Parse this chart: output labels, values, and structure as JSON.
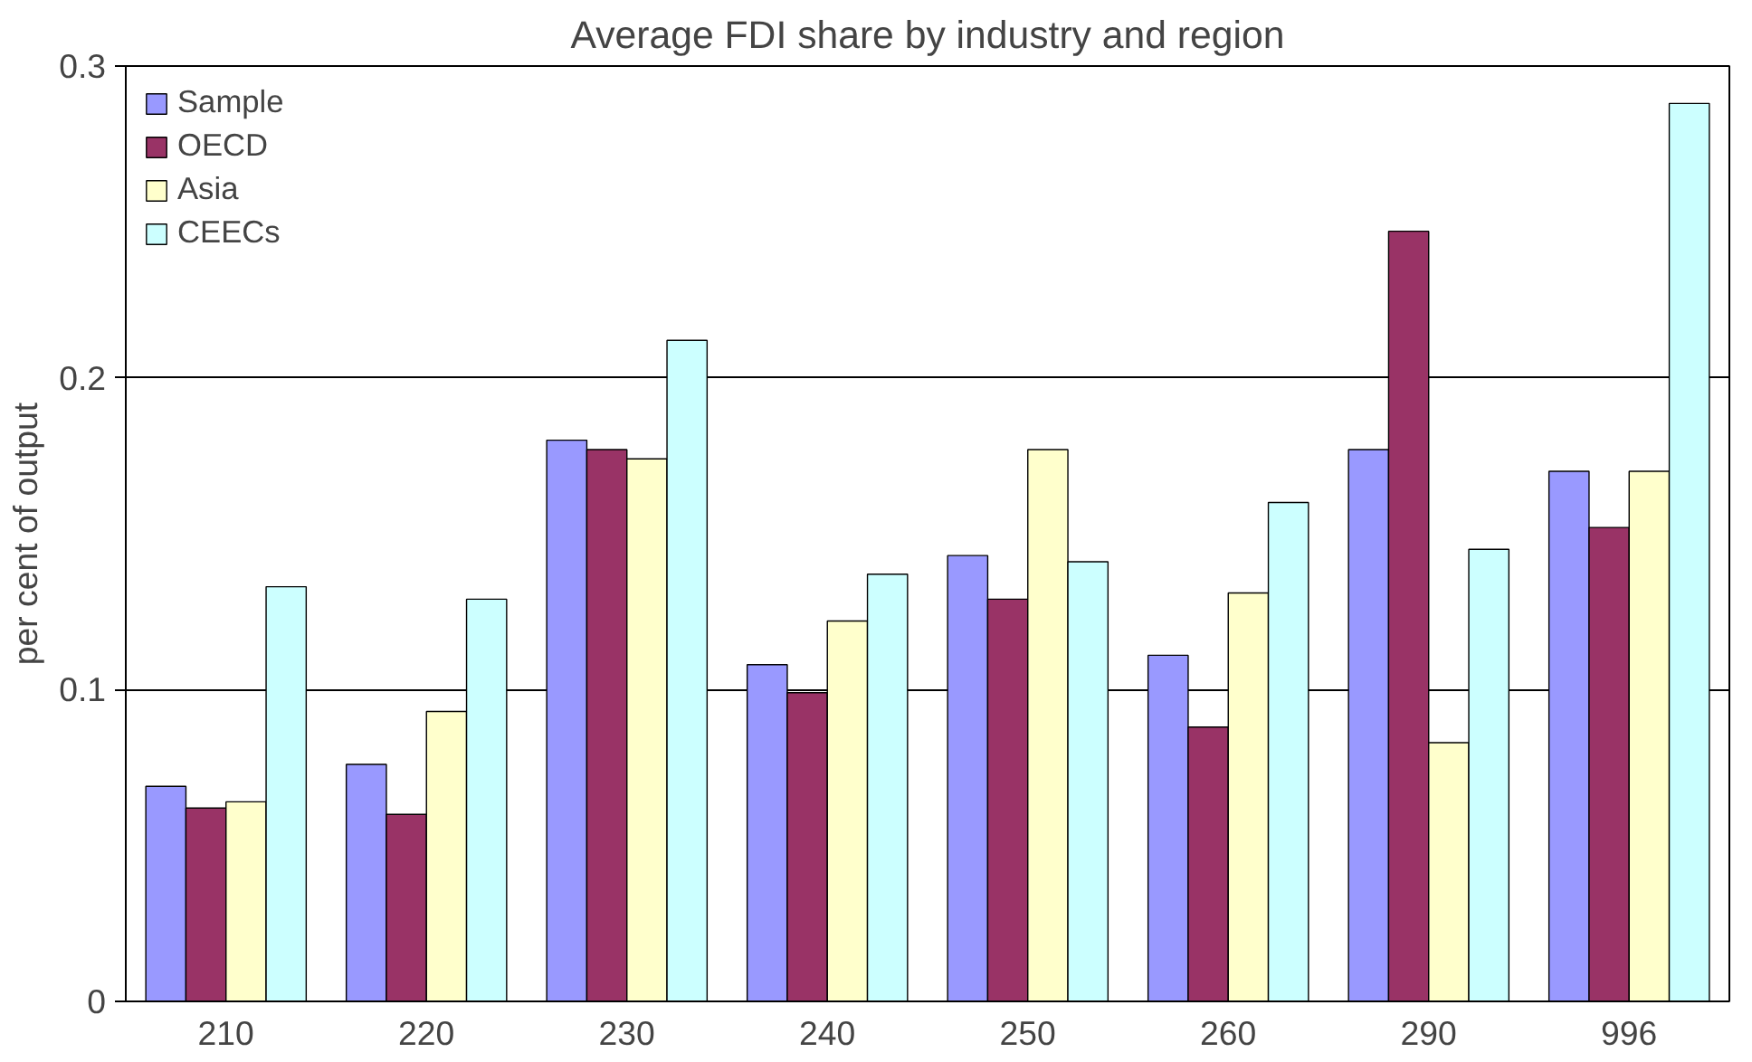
{
  "chart_data": {
    "type": "bar",
    "title": "Average FDI share by industry and region",
    "ylabel": "per cent of output",
    "categories": [
      "210",
      "220",
      "230",
      "240",
      "250",
      "260",
      "290",
      "996"
    ],
    "series": [
      {
        "name": "Sample",
        "color": "#9999ff",
        "values": [
          0.069,
          0.076,
          0.18,
          0.108,
          0.143,
          0.111,
          0.177,
          0.17
        ]
      },
      {
        "name": "OECD",
        "color": "#993366",
        "values": [
          0.062,
          0.06,
          0.177,
          0.099,
          0.129,
          0.088,
          0.247,
          0.152
        ]
      },
      {
        "name": "Asia",
        "color": "#ffffcc",
        "values": [
          0.064,
          0.093,
          0.174,
          0.122,
          0.177,
          0.131,
          0.083,
          0.17
        ]
      },
      {
        "name": "CEECs",
        "color": "#ccffff",
        "values": [
          0.133,
          0.129,
          0.212,
          0.137,
          0.141,
          0.16,
          0.145,
          0.288
        ]
      }
    ],
    "ylim": [
      0,
      0.3
    ],
    "yticks": [
      0,
      0.1,
      0.2,
      0.3
    ],
    "grid": "y",
    "legend": "top left"
  }
}
